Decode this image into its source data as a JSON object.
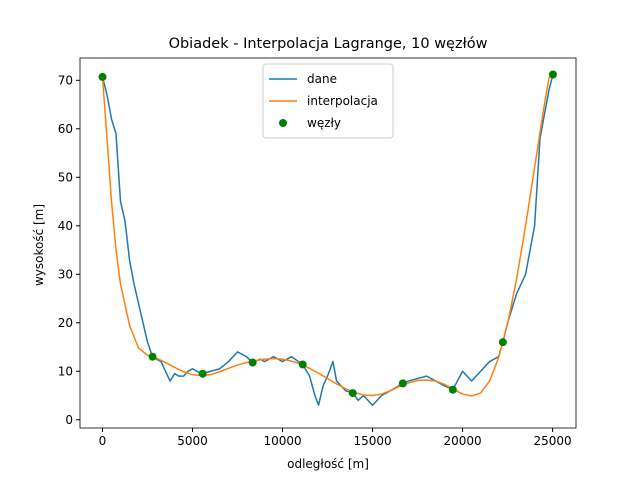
{
  "chart_data": {
    "type": "line",
    "title": "Obiadek - Interpolacja Lagrange, 10 węzłów",
    "xlabel": "odległość [m]",
    "ylabel": "wysokość [m]",
    "xlim": [
      -1250,
      26300
    ],
    "ylim": [
      -1.7,
      74.6
    ],
    "xticks": [
      0,
      5000,
      10000,
      15000,
      20000,
      25000
    ],
    "yticks": [
      0,
      10,
      20,
      30,
      40,
      50,
      60,
      70
    ],
    "grid": false,
    "legend": "upper center",
    "series": [
      {
        "name": "dane",
        "color": "#1f77b4",
        "kind": "line",
        "x": [
          0,
          250,
          500,
          750,
          1000,
          1250,
          1500,
          1750,
          2000,
          2250,
          2500,
          2780,
          3000,
          3250,
          3500,
          3750,
          4000,
          4250,
          4500,
          4750,
          5000,
          5250,
          5560,
          6000,
          6500,
          7000,
          7500,
          8000,
          8340,
          8750,
          9000,
          9500,
          10000,
          10500,
          11120,
          11500,
          11800,
          12000,
          12250,
          12500,
          12800,
          13000,
          13500,
          13900,
          14200,
          14500,
          15000,
          15500,
          16000,
          16680,
          17000,
          17500,
          18000,
          18500,
          19000,
          19460,
          20000,
          20500,
          21000,
          21500,
          22000,
          22240,
          22500,
          23000,
          23500,
          24000,
          24300,
          24500,
          24800,
          25020
        ],
        "values": [
          70.7,
          67,
          62,
          59,
          45,
          41,
          33,
          28,
          24,
          20,
          16,
          13,
          12.5,
          12,
          10,
          8,
          9.5,
          9,
          9,
          10,
          10.5,
          10,
          9.5,
          10,
          10.5,
          12,
          14,
          13,
          11.8,
          12.5,
          12,
          13,
          12,
          13,
          11.4,
          9,
          5,
          3,
          7,
          9,
          12,
          8,
          6,
          5.5,
          4,
          5,
          3,
          5,
          6,
          7.5,
          8,
          8.5,
          9,
          8,
          7,
          6.2,
          10,
          8,
          10,
          12,
          13,
          16,
          20,
          26,
          30,
          40,
          58,
          62,
          68,
          71.2
        ]
      },
      {
        "name": "interpolacja",
        "color": "#ff7f0e",
        "kind": "line",
        "x": [
          0,
          250,
          500,
          750,
          1000,
          1500,
          2000,
          2500,
          3000,
          3500,
          4000,
          4500,
          5000,
          5500,
          6000,
          6500,
          7000,
          7500,
          8000,
          8500,
          9000,
          9500,
          10000,
          10500,
          11000,
          11500,
          12000,
          12500,
          13000,
          13500,
          14000,
          14500,
          15000,
          15500,
          16000,
          16500,
          17000,
          17500,
          18000,
          18500,
          19000,
          19500,
          20000,
          20500,
          21000,
          21500,
          22000,
          22500,
          23000,
          23500,
          24000,
          24500,
          24800,
          25020
        ],
        "values": [
          70.7,
          58,
          45,
          35,
          28,
          19.5,
          14.8,
          13.3,
          12.7,
          11.8,
          10.8,
          9.9,
          9.3,
          9.1,
          9.3,
          9.9,
          10.6,
          11.3,
          11.8,
          12.2,
          12.5,
          12.6,
          12.5,
          12.1,
          11.5,
          10.6,
          9.6,
          8.5,
          7.4,
          6.4,
          5.6,
          5.1,
          5.0,
          5.3,
          6.0,
          6.9,
          7.6,
          8.1,
          8.2,
          8.0,
          7.3,
          6.3,
          5.3,
          4.9,
          5.5,
          8.0,
          12.8,
          19.8,
          29,
          40,
          52,
          64,
          70.5,
          71.2
        ]
      },
      {
        "name": "węzły",
        "color": "#008000",
        "kind": "scatter",
        "x": [
          0,
          2780,
          5560,
          8340,
          11120,
          13900,
          16680,
          19460,
          22240,
          25020
        ],
        "values": [
          70.7,
          13,
          9.5,
          11.8,
          11.4,
          5.5,
          7.5,
          6.2,
          16,
          71.2
        ]
      }
    ]
  }
}
